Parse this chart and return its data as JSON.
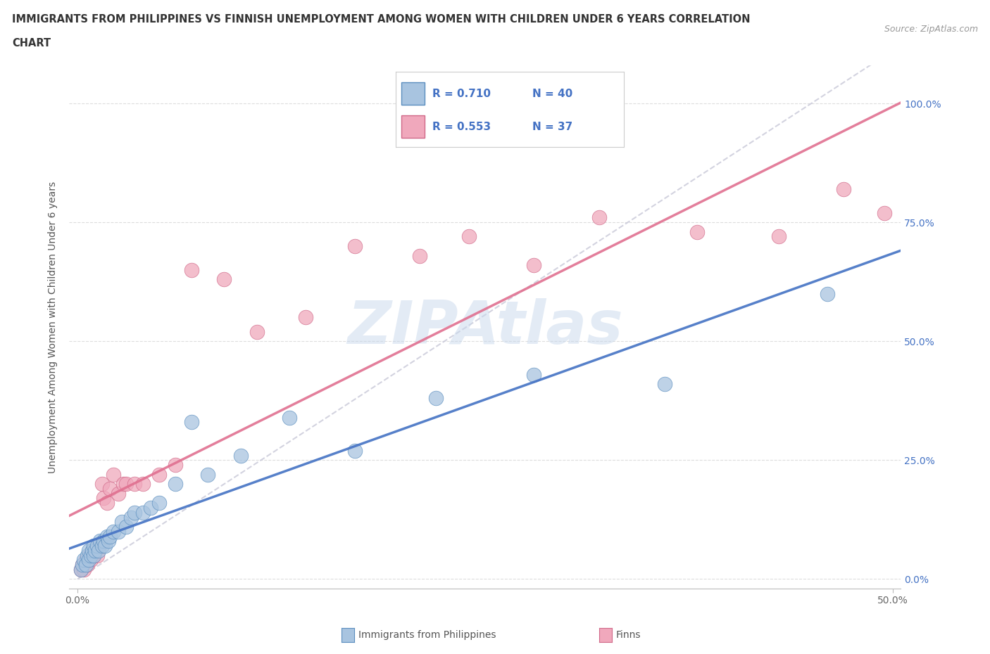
{
  "title_line1": "IMMIGRANTS FROM PHILIPPINES VS FINNISH UNEMPLOYMENT AMONG WOMEN WITH CHILDREN UNDER 6 YEARS CORRELATION",
  "title_line2": "CHART",
  "source": "Source: ZipAtlas.com",
  "ylabel": "Unemployment Among Women with Children Under 6 years",
  "xlim": [
    -0.005,
    0.505
  ],
  "ylim": [
    -0.02,
    1.08
  ],
  "x_ticks": [
    0.0,
    0.5
  ],
  "y_ticks": [
    0.0,
    0.25,
    0.5,
    0.75,
    1.0
  ],
  "legend_label1": "Immigrants from Philippines",
  "legend_label2": "Finns",
  "R1": 0.71,
  "N1": 40,
  "R2": 0.553,
  "N2": 37,
  "color_blue_fill": "#A8C4E0",
  "color_blue_edge": "#5A8DBE",
  "color_pink_fill": "#F0A8BC",
  "color_pink_edge": "#D06888",
  "color_blue_line": "#4472C4",
  "color_pink_line": "#E07090",
  "color_dash_line": "#C8C8D8",
  "blue_x": [
    0.002,
    0.003,
    0.004,
    0.005,
    0.006,
    0.007,
    0.007,
    0.008,
    0.009,
    0.01,
    0.01,
    0.011,
    0.012,
    0.013,
    0.014,
    0.015,
    0.016,
    0.017,
    0.018,
    0.019,
    0.02,
    0.022,
    0.025,
    0.027,
    0.03,
    0.033,
    0.035,
    0.04,
    0.045,
    0.05,
    0.06,
    0.07,
    0.08,
    0.1,
    0.13,
    0.17,
    0.22,
    0.28,
    0.36,
    0.46
  ],
  "blue_y": [
    0.02,
    0.03,
    0.04,
    0.03,
    0.05,
    0.04,
    0.06,
    0.05,
    0.06,
    0.05,
    0.07,
    0.06,
    0.07,
    0.06,
    0.08,
    0.07,
    0.08,
    0.07,
    0.09,
    0.08,
    0.09,
    0.1,
    0.1,
    0.12,
    0.11,
    0.13,
    0.14,
    0.14,
    0.15,
    0.16,
    0.2,
    0.33,
    0.22,
    0.26,
    0.34,
    0.27,
    0.38,
    0.43,
    0.41,
    0.6
  ],
  "pink_x": [
    0.002,
    0.003,
    0.004,
    0.005,
    0.006,
    0.007,
    0.008,
    0.009,
    0.01,
    0.011,
    0.012,
    0.013,
    0.015,
    0.016,
    0.018,
    0.02,
    0.022,
    0.025,
    0.028,
    0.03,
    0.035,
    0.04,
    0.05,
    0.06,
    0.07,
    0.09,
    0.11,
    0.14,
    0.17,
    0.21,
    0.24,
    0.28,
    0.32,
    0.38,
    0.43,
    0.47,
    0.495
  ],
  "pink_y": [
    0.02,
    0.03,
    0.02,
    0.04,
    0.03,
    0.05,
    0.04,
    0.06,
    0.05,
    0.06,
    0.05,
    0.07,
    0.2,
    0.17,
    0.16,
    0.19,
    0.22,
    0.18,
    0.2,
    0.2,
    0.2,
    0.2,
    0.22,
    0.24,
    0.65,
    0.63,
    0.52,
    0.55,
    0.7,
    0.68,
    0.72,
    0.66,
    0.76,
    0.73,
    0.72,
    0.82,
    0.77
  ],
  "watermark_text": "ZIPAtlas",
  "watermark_color": "#C8D8EC",
  "watermark_alpha": 0.5,
  "title_fontsize": 10.5,
  "source_fontsize": 9,
  "tick_fontsize": 10,
  "ylabel_fontsize": 10,
  "legend_fontsize": 11
}
